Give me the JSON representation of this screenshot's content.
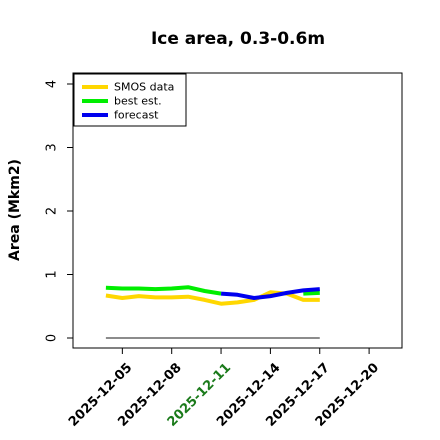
{
  "chart_data": {
    "type": "line",
    "title": "Ice area, 0.3-0.6m",
    "ylabel": "Area (Mkm2)",
    "xlabel": "",
    "ylim": [
      0,
      4
    ],
    "yticks": [
      "0",
      "1",
      "2",
      "3",
      "4"
    ],
    "xlim": [
      "2025-12-02",
      "2025-12-22"
    ],
    "xticks": [
      {
        "date": "2025-12-05",
        "label": "2025-12-05",
        "color": "#000000"
      },
      {
        "date": "2025-12-08",
        "label": "2025-12-08",
        "color": "#000000"
      },
      {
        "date": "2025-12-11",
        "label": "2025-12-11",
        "color": "#1a7a1a"
      },
      {
        "date": "2025-12-14",
        "label": "2025-12-14",
        "color": "#000000"
      },
      {
        "date": "2025-12-17",
        "label": "2025-12-17",
        "color": "#000000"
      },
      {
        "date": "2025-12-20",
        "label": "2025-12-20",
        "color": "#000000"
      }
    ],
    "legend_position": "top-left",
    "series": [
      {
        "name": "SMOS data",
        "color": "#FFD700",
        "x": [
          "2025-12-04",
          "2025-12-05",
          "2025-12-06",
          "2025-12-07",
          "2025-12-08",
          "2025-12-09",
          "2025-12-10",
          "2025-12-11",
          "2025-12-12",
          "2025-12-13",
          "2025-12-14",
          "2025-12-15",
          "2025-12-16",
          "2025-12-17"
        ],
        "values": [
          0.67,
          0.63,
          0.66,
          0.64,
          0.64,
          0.65,
          0.6,
          0.54,
          0.56,
          0.6,
          0.72,
          0.7,
          0.6,
          0.6
        ]
      },
      {
        "name": "best est.",
        "color": "#00EE00",
        "x": [
          "2025-12-04",
          "2025-12-05",
          "2025-12-06",
          "2025-12-07",
          "2025-12-08",
          "2025-12-09",
          "2025-12-10",
          "2025-12-11",
          "2025-12-16",
          "2025-12-17"
        ],
        "values": [
          0.79,
          0.78,
          0.78,
          0.77,
          0.78,
          0.8,
          0.74,
          0.7,
          0.7,
          0.71
        ]
      },
      {
        "name": "forecast",
        "color": "#0000EE",
        "x": [
          "2025-12-11",
          "2025-12-12",
          "2025-12-13",
          "2025-12-14",
          "2025-12-15",
          "2025-12-16",
          "2025-12-17"
        ],
        "values": [
          0.7,
          0.68,
          0.63,
          0.66,
          0.71,
          0.75,
          0.77
        ]
      }
    ],
    "baseline": {
      "color": "#666666",
      "x": [
        "2025-12-04",
        "2025-12-17"
      ],
      "value": 0
    }
  }
}
